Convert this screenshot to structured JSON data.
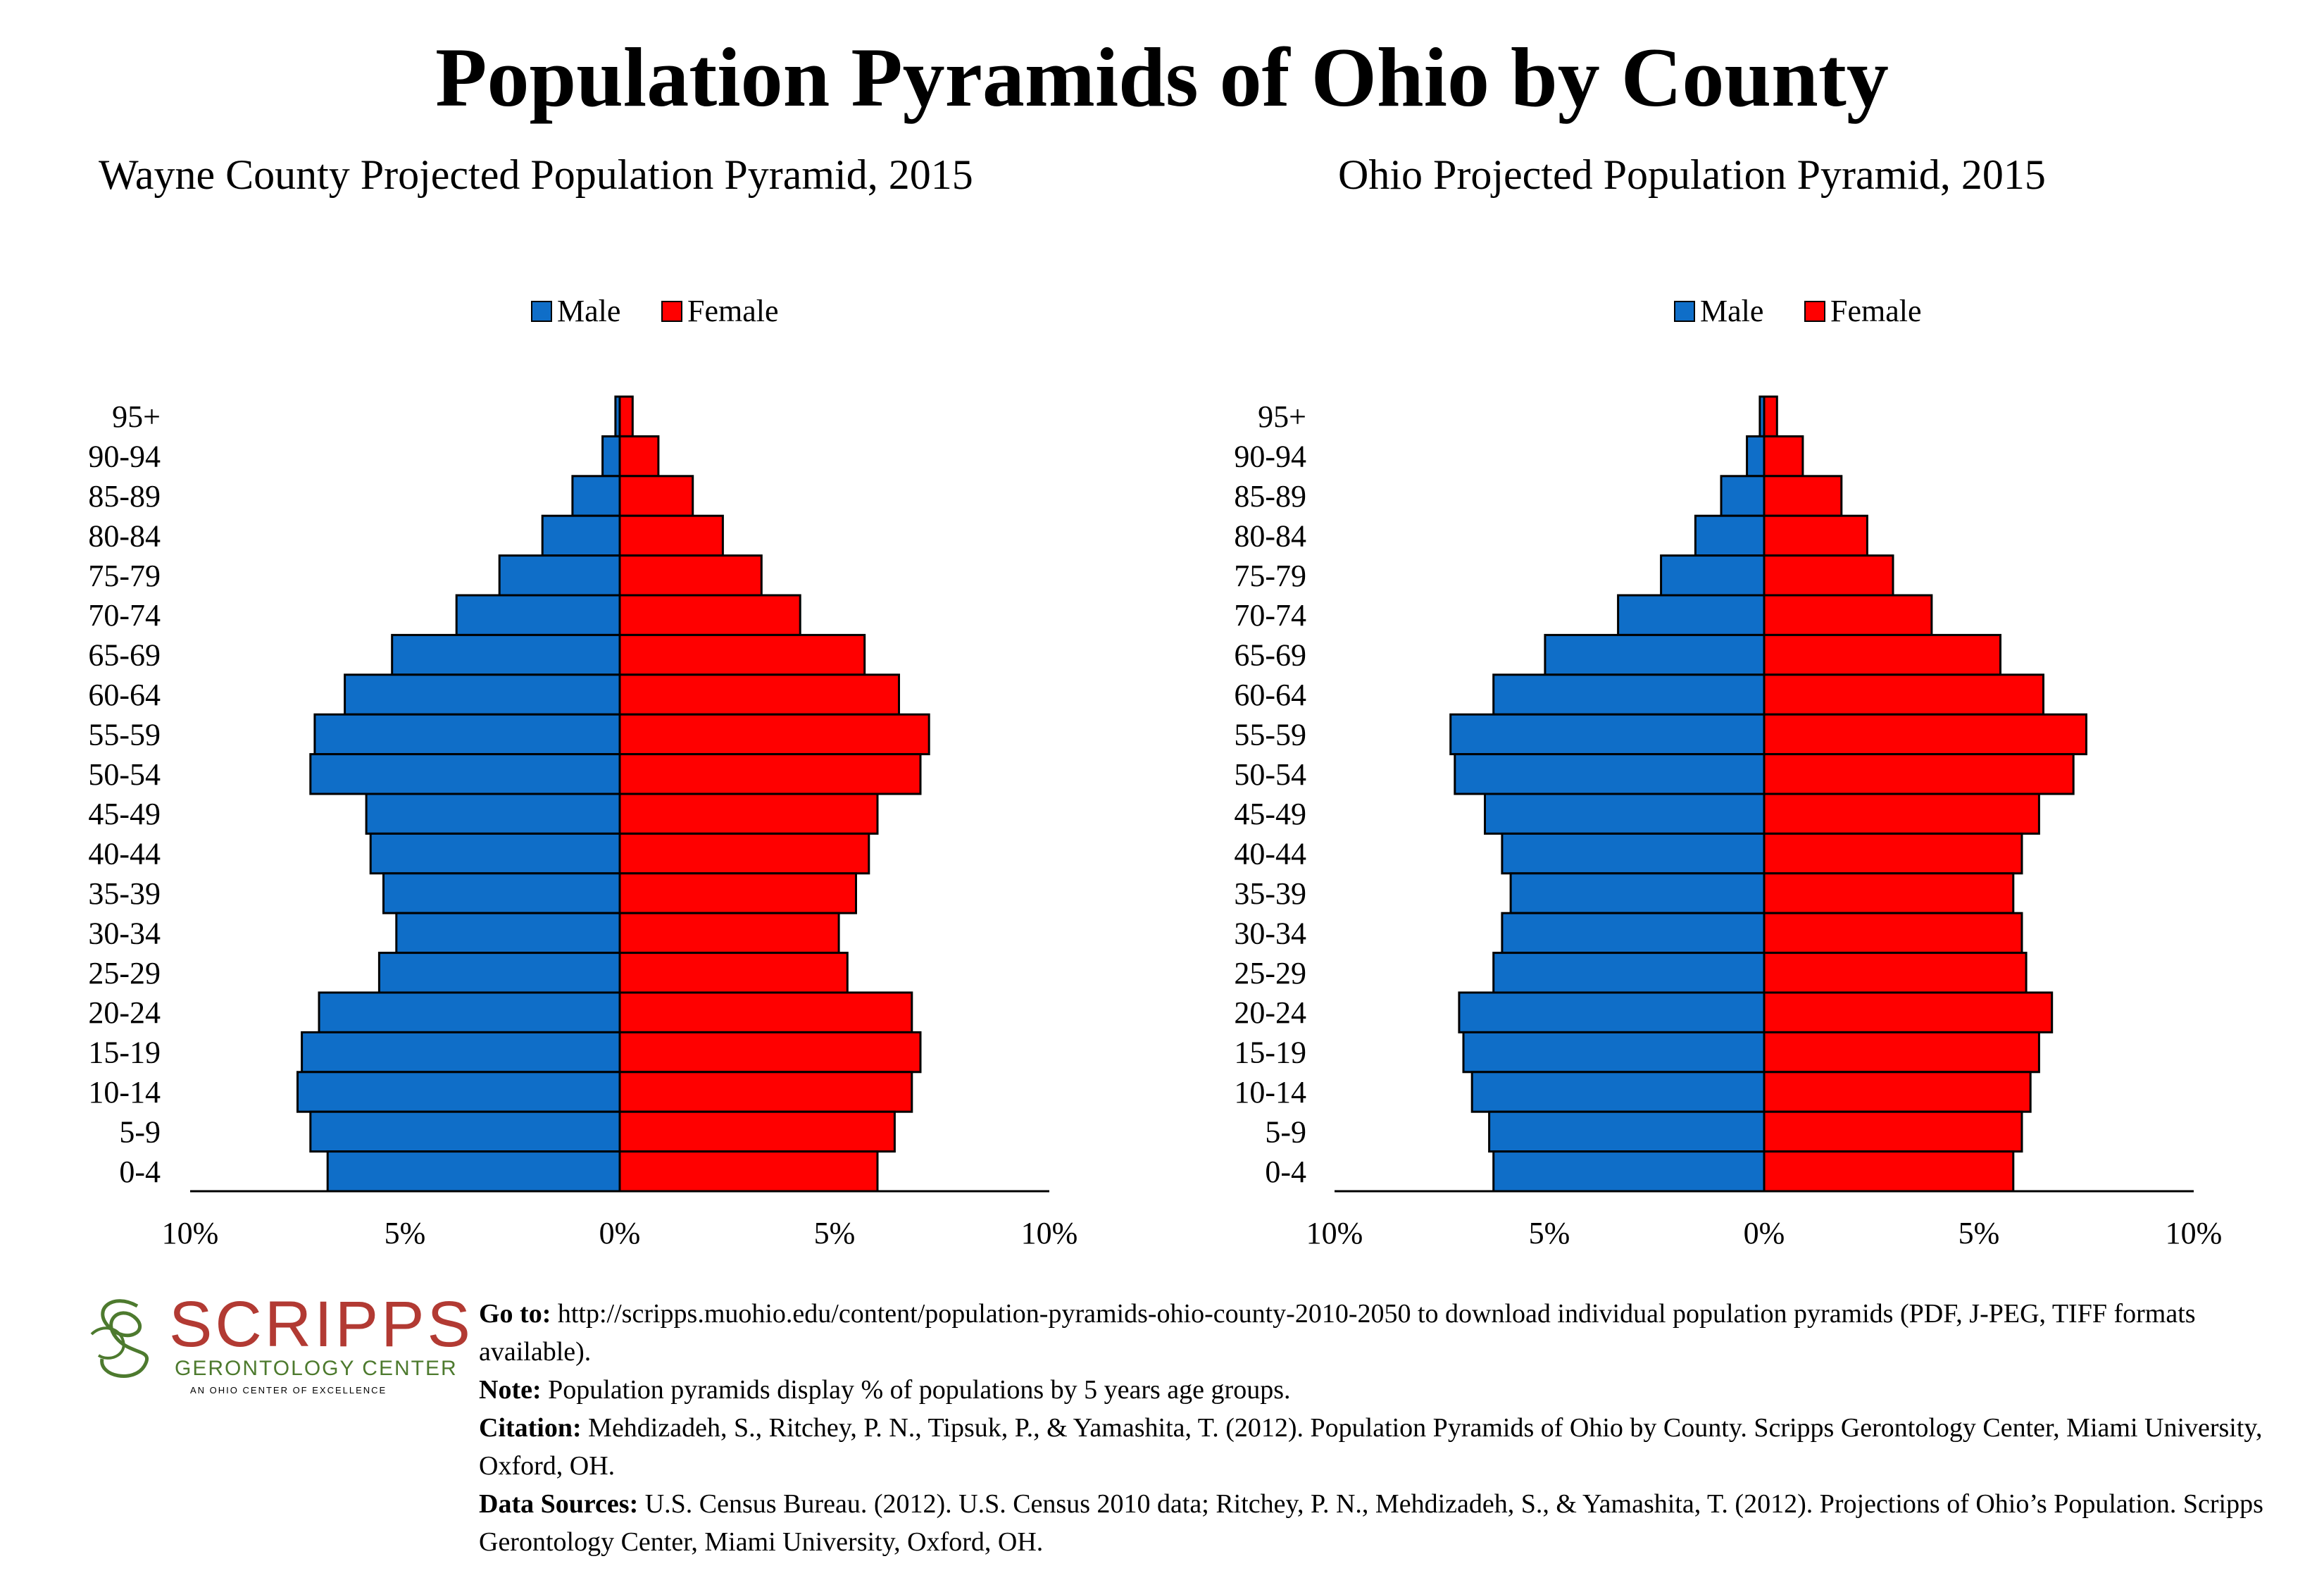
{
  "title": "Population Pyramids of Ohio by County",
  "colors": {
    "male": "#0f6ec8",
    "female": "#ff0000",
    "logo_red": "#b23a33",
    "logo_green": "#4d7a2e"
  },
  "chart_data": [
    {
      "type": "bar",
      "orientation": "horizontal-pyramid",
      "title": "Wayne County Projected Population Pyramid, 2015",
      "legend": {
        "position": "top-center",
        "entries": [
          "Male",
          "Female"
        ]
      },
      "categories": [
        "95+",
        "90-94",
        "85-89",
        "80-84",
        "75-79",
        "70-74",
        "65-69",
        "60-64",
        "55-59",
        "50-54",
        "45-49",
        "40-44",
        "35-39",
        "30-34",
        "25-29",
        "20-24",
        "15-19",
        "10-14",
        "5-9",
        "0-4"
      ],
      "series": [
        {
          "name": "Male",
          "values": [
            0.1,
            0.4,
            1.1,
            1.8,
            2.8,
            3.8,
            5.3,
            6.4,
            7.1,
            7.2,
            5.9,
            5.8,
            5.5,
            5.2,
            5.6,
            7.0,
            7.4,
            7.5,
            7.2,
            6.8
          ]
        },
        {
          "name": "Female",
          "values": [
            0.3,
            0.9,
            1.7,
            2.4,
            3.3,
            4.2,
            5.7,
            6.5,
            7.2,
            7.0,
            6.0,
            5.8,
            5.5,
            5.1,
            5.3,
            6.8,
            7.0,
            6.8,
            6.4,
            6.0
          ]
        }
      ],
      "xlim": [
        -10,
        10
      ],
      "xticks": [
        "10%",
        "5%",
        "0%",
        "5%",
        "10%"
      ]
    },
    {
      "type": "bar",
      "orientation": "horizontal-pyramid",
      "title": "Ohio Projected Population Pyramid, 2015",
      "legend": {
        "position": "top-center",
        "entries": [
          "Male",
          "Female"
        ]
      },
      "categories": [
        "95+",
        "90-94",
        "85-89",
        "80-84",
        "75-79",
        "70-74",
        "65-69",
        "60-64",
        "55-59",
        "50-54",
        "45-49",
        "40-44",
        "35-39",
        "30-34",
        "25-29",
        "20-24",
        "15-19",
        "10-14",
        "5-9",
        "0-4"
      ],
      "series": [
        {
          "name": "Male",
          "values": [
            0.1,
            0.4,
            1.0,
            1.6,
            2.4,
            3.4,
            5.1,
            6.3,
            7.3,
            7.2,
            6.5,
            6.1,
            5.9,
            6.1,
            6.3,
            7.1,
            7.0,
            6.8,
            6.4,
            6.3
          ]
        },
        {
          "name": "Female",
          "values": [
            0.3,
            0.9,
            1.8,
            2.4,
            3.0,
            3.9,
            5.5,
            6.5,
            7.5,
            7.2,
            6.4,
            6.0,
            5.8,
            6.0,
            6.1,
            6.7,
            6.4,
            6.2,
            6.0,
            5.8
          ]
        }
      ],
      "xlim": [
        -10,
        10
      ],
      "xticks": [
        "10%",
        "5%",
        "0%",
        "5%",
        "10%"
      ]
    }
  ],
  "logo": {
    "word": "SCRIPPS",
    "sub": "GERONTOLOGY CENTER",
    "tag": "AN OHIO CENTER OF EXCELLENCE"
  },
  "footer": {
    "goto_label": "Go to:",
    "goto_text": " http://scripps.muohio.edu/content/population-pyramids-ohio-county-2010-2050 to download individual population pyramids (PDF, J-PEG, TIFF formats available).",
    "note_label": "Note:",
    "note_text": " Population pyramids display % of populations by 5 years age groups.",
    "citation_label": "Citation:",
    "citation_text": " Mehdizadeh, S., Ritchey, P. N., Tipsuk, P., & Yamashita, T. (2012). Population Pyramids of Ohio by County. Scripps Gerontology Center, Miami University, Oxford, OH.",
    "sources_label": "Data Sources:",
    "sources_text": " U.S. Census Bureau. (2012). U.S. Census 2010 data; Ritchey, P. N., Mehdizadeh, S., & Yamashita, T. (2012). Projections of Ohio’s Population. Scripps Gerontology Center, Miami University, Oxford, OH."
  }
}
